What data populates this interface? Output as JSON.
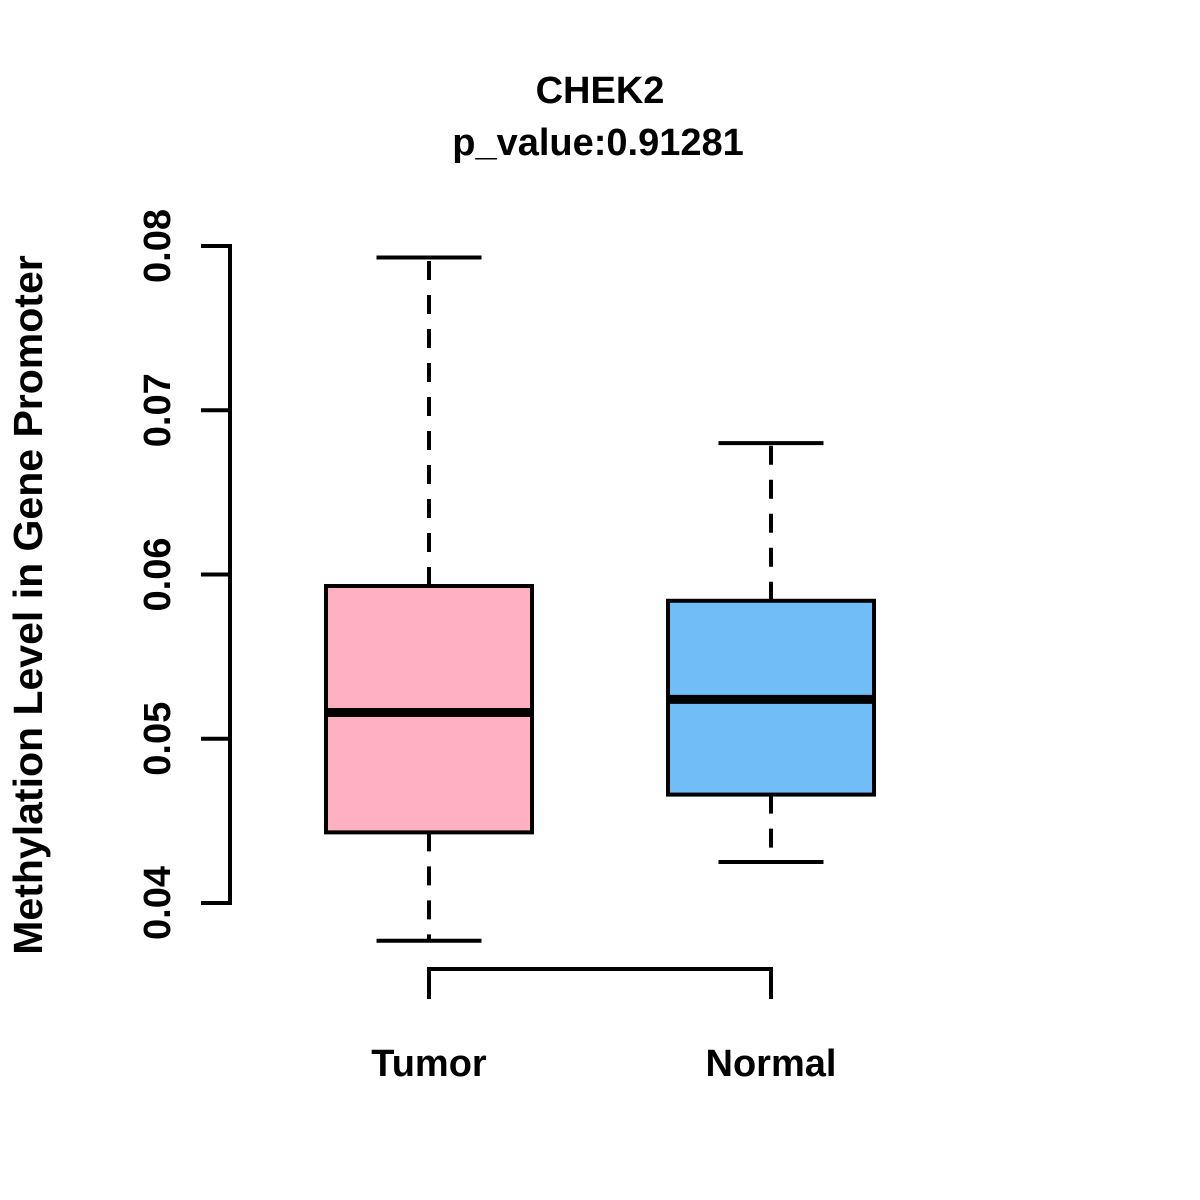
{
  "chart_data": {
    "type": "boxplot",
    "title": "CHEK2",
    "subtitle": "p_value:0.91281",
    "ylabel": "Methylation Level in Gene Promoter",
    "xlabel": "",
    "ylim": [
      0.04,
      0.08
    ],
    "yticks": [
      0.04,
      0.05,
      0.06,
      0.07,
      0.08
    ],
    "ytick_labels": [
      "0.04",
      "0.05",
      "0.06",
      "0.07",
      "0.08"
    ],
    "categories": [
      "Tumor",
      "Normal"
    ],
    "series": [
      {
        "name": "Tumor",
        "fill_color": "#FFB1C1",
        "whisker_low": 0.0377,
        "q1": 0.0443,
        "median": 0.0516,
        "q3": 0.0593,
        "whisker_high": 0.0793,
        "outliers": []
      },
      {
        "name": "Normal",
        "fill_color": "#70BDF8",
        "whisker_low": 0.0425,
        "q1": 0.0466,
        "median": 0.0524,
        "q3": 0.0584,
        "whisker_high": 0.068,
        "outliers": []
      }
    ],
    "styles": {
      "line_color": "#000000",
      "background": "#FFFFFF",
      "whisker_linestyle": "dashed",
      "grid": false,
      "legend": false,
      "comparison_bracket_below_axis": true
    }
  }
}
